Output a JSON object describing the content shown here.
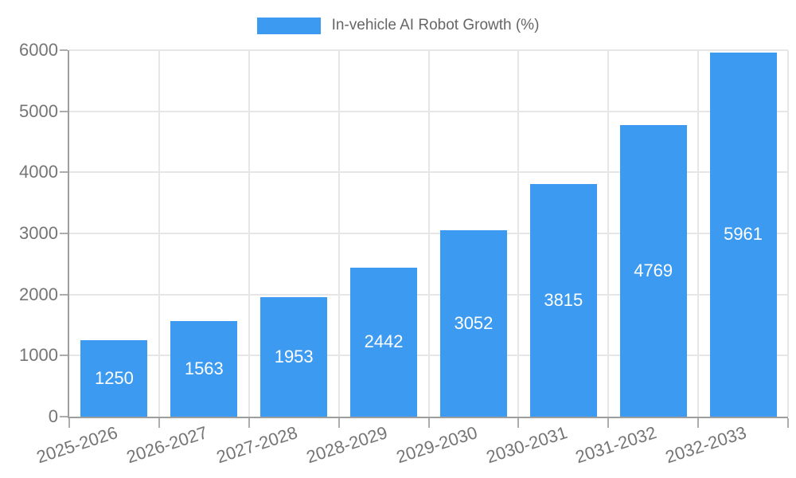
{
  "legend": {
    "label": "In-vehicle AI Robot Growth (%)",
    "swatch_color": "#3c9af0"
  },
  "chart_data": {
    "type": "bar",
    "title": "In-vehicle AI Robot Growth (%)",
    "categories": [
      "2025-2026",
      "2026-2027",
      "2027-2028",
      "2028-2029",
      "2029-2030",
      "2030-2031",
      "2031-2032",
      "2032-2033"
    ],
    "values": [
      1250,
      1563,
      1953,
      2442,
      3052,
      3815,
      4769,
      5961
    ],
    "value_labels": [
      "1250",
      "1563",
      "1953",
      "2442",
      "3052",
      "3815",
      "4769",
      "5961"
    ],
    "xlabel": "",
    "ylabel": "",
    "ylim": [
      0,
      6000
    ],
    "yticks": [
      0,
      1000,
      2000,
      3000,
      4000,
      5000,
      6000
    ],
    "grid": true,
    "legend_position": "top",
    "x_tick_rotation_deg": -18,
    "bar_color": "#3c9af0",
    "value_label_color": "#ffffff"
  },
  "colors": {
    "background": "#ffffff",
    "axis": "#9e9e9e",
    "gridline": "#e6e6e6",
    "tick": "#adadad",
    "tick_text": "#757575",
    "legend_text": "#666666"
  }
}
